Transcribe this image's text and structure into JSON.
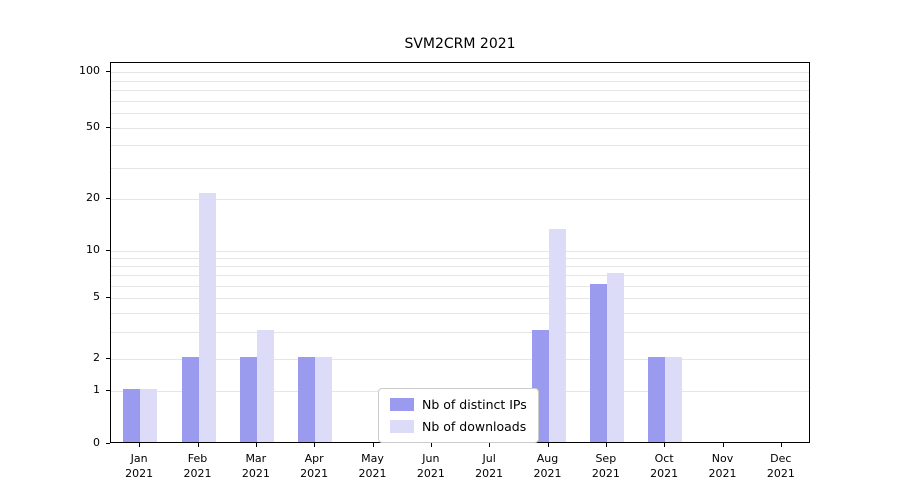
{
  "chart_data": {
    "type": "bar",
    "title": "SVM2CRM 2021",
    "categories": [
      "Jan 2021",
      "Feb 2021",
      "Mar 2021",
      "Apr 2021",
      "May 2021",
      "Jun 2021",
      "Jul 2021",
      "Aug 2021",
      "Sep 2021",
      "Oct 2021",
      "Nov 2021",
      "Dec 2021"
    ],
    "category_labels": [
      [
        "Jan",
        "2021"
      ],
      [
        "Feb",
        "2021"
      ],
      [
        "Mar",
        "2021"
      ],
      [
        "Apr",
        "2021"
      ],
      [
        "May",
        "2021"
      ],
      [
        "Jun",
        "2021"
      ],
      [
        "Jul",
        "2021"
      ],
      [
        "Aug",
        "2021"
      ],
      [
        "Sep",
        "2021"
      ],
      [
        "Oct",
        "2021"
      ],
      [
        "Nov",
        "2021"
      ],
      [
        "Dec",
        "2021"
      ]
    ],
    "series": [
      {
        "name": "Nb of distinct IPs",
        "color": "#9a9aee",
        "values": [
          1,
          2,
          2,
          2,
          0,
          0,
          0,
          3,
          6,
          2,
          0,
          0
        ]
      },
      {
        "name": "Nb of downloads",
        "color": "#dcdcf8",
        "values": [
          1,
          21,
          3,
          2,
          0,
          0,
          0,
          13,
          7,
          2,
          0,
          0
        ]
      }
    ],
    "xlabel": "",
    "ylabel": "",
    "yticks": [
      0,
      1,
      2,
      5,
      10,
      20,
      50,
      100
    ],
    "grid_values": [
      1,
      2,
      3,
      4,
      5,
      6,
      7,
      8,
      9,
      10,
      20,
      30,
      40,
      50,
      60,
      70,
      80,
      90,
      100
    ],
    "yscale": "symlog",
    "ylim": [
      0,
      115
    ],
    "grid": "horizontal",
    "legend_position": "lower center",
    "scale": {
      "anchor_values": [
        0,
        1,
        2,
        5,
        10,
        20,
        50,
        100
      ],
      "anchor_fracs": [
        0,
        0.139,
        0.223,
        0.383,
        0.506,
        0.643,
        0.829,
        0.976
      ]
    }
  }
}
